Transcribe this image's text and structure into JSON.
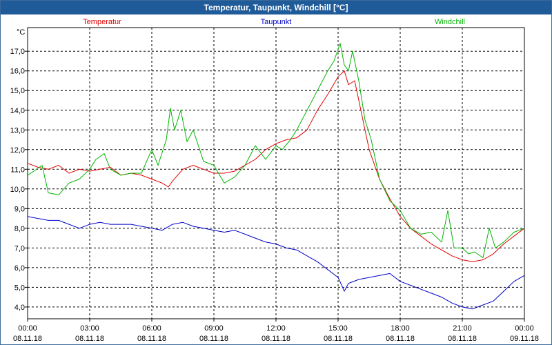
{
  "window": {
    "title": "Temperatur, Taupunkt, Windchill [°C]"
  },
  "colors": {
    "titlebar": "#1f5a99",
    "temperatur": "#e00000",
    "taupunkt": "#0000c8",
    "windchill": "#00b400"
  },
  "chart_data": {
    "type": "line",
    "title": "Temperatur, Taupunkt, Windchill [°C]",
    "ylabel": "°C",
    "ylim": [
      3.4,
      18.2
    ],
    "xlim": [
      0,
      24
    ],
    "yticks": [
      4,
      5,
      6,
      7,
      8,
      9,
      10,
      11,
      12,
      13,
      14,
      15,
      16,
      17
    ],
    "ytick_labels": [
      "4,0",
      "5,0",
      "6,0",
      "7,0",
      "8,0",
      "9,0",
      "10,0",
      "11,0",
      "12,0",
      "13,0",
      "14,0",
      "15,0",
      "16,0",
      "17,0"
    ],
    "xticks": [
      0,
      3,
      6,
      9,
      12,
      15,
      18,
      21,
      24
    ],
    "xtick_time": [
      "00:00",
      "03:00",
      "06:00",
      "09:00",
      "12:00",
      "15:00",
      "18:00",
      "21:00",
      "00:00"
    ],
    "xtick_date": [
      "08.11.18",
      "08.11.18",
      "08.11.18",
      "08.11.18",
      "08.11.18",
      "08.11.18",
      "08.11.18",
      "08.11.18",
      "09.11.18"
    ],
    "series": [
      {
        "name": "Temperatur",
        "color": "#e00000",
        "x": [
          0,
          0.5,
          1,
          1.5,
          2,
          2.5,
          3,
          3.5,
          4,
          4.5,
          5,
          5.5,
          6,
          6.5,
          6.8,
          7,
          7.5,
          8,
          8.5,
          9,
          9.5,
          10,
          10.5,
          11,
          11.5,
          12,
          12.5,
          13,
          13.5,
          14,
          14.5,
          15,
          15.3,
          15.5,
          15.8,
          16,
          16.5,
          17,
          17.5,
          18,
          18.5,
          19,
          19.5,
          20,
          20.5,
          21,
          21.5,
          22,
          22.5,
          23,
          23.5,
          24
        ],
        "y": [
          11.3,
          11.1,
          11.0,
          11.2,
          10.8,
          11.0,
          10.9,
          11.0,
          11.1,
          10.7,
          10.8,
          10.7,
          10.5,
          10.3,
          10.1,
          10.4,
          11.0,
          11.2,
          11.0,
          10.8,
          10.8,
          10.9,
          11.2,
          11.5,
          12.0,
          12.3,
          12.5,
          12.6,
          13.0,
          14.0,
          14.8,
          15.7,
          16.0,
          15.3,
          15.5,
          14.5,
          12.0,
          10.5,
          9.5,
          8.6,
          8.0,
          7.6,
          7.2,
          6.9,
          6.6,
          6.4,
          6.3,
          6.4,
          6.7,
          7.2,
          7.6,
          8.0
        ]
      },
      {
        "name": "Taupunkt",
        "color": "#0000c8",
        "x": [
          0,
          0.5,
          1,
          1.5,
          2,
          2.5,
          3,
          3.5,
          4,
          4.5,
          5,
          5.5,
          6,
          6.5,
          7,
          7.5,
          8,
          8.5,
          9,
          9.5,
          10,
          10.5,
          11,
          11.5,
          12,
          12.5,
          13,
          13.5,
          14,
          14.5,
          15,
          15.3,
          15.5,
          16,
          16.5,
          17,
          17.5,
          18,
          18.5,
          19,
          19.5,
          20,
          20.5,
          21,
          21.5,
          22,
          22.5,
          23,
          23.5,
          24
        ],
        "y": [
          8.6,
          8.5,
          8.4,
          8.4,
          8.2,
          8.0,
          8.2,
          8.3,
          8.2,
          8.2,
          8.2,
          8.1,
          8.0,
          7.9,
          8.2,
          8.3,
          8.1,
          8.0,
          7.9,
          7.8,
          7.9,
          7.7,
          7.5,
          7.3,
          7.2,
          7.0,
          6.9,
          6.6,
          6.3,
          5.9,
          5.5,
          4.8,
          5.2,
          5.4,
          5.5,
          5.6,
          5.7,
          5.3,
          5.1,
          4.9,
          4.7,
          4.5,
          4.2,
          4.0,
          3.9,
          4.1,
          4.3,
          4.8,
          5.3,
          5.6
        ]
      },
      {
        "name": "Windchill",
        "color": "#00b400",
        "x": [
          0,
          0.3,
          0.7,
          1,
          1.5,
          2,
          2.5,
          3,
          3.3,
          3.7,
          4,
          4.5,
          5,
          5.5,
          6,
          6.3,
          6.7,
          6.9,
          7.1,
          7.4,
          7.7,
          8,
          8.5,
          9,
          9.5,
          10,
          10.5,
          11,
          11.5,
          12,
          12.3,
          12.7,
          13,
          13.5,
          14,
          14.5,
          14.8,
          15.1,
          15.3,
          15.5,
          15.7,
          16,
          16.3,
          16.6,
          17,
          17.5,
          18,
          18.5,
          19,
          19.5,
          20,
          20.3,
          20.6,
          21,
          21.3,
          21.6,
          22,
          22.3,
          22.6,
          23,
          23.5,
          24
        ],
        "y": [
          10.7,
          10.9,
          11.2,
          9.8,
          9.7,
          10.3,
          10.5,
          11.0,
          11.5,
          11.8,
          11.0,
          10.7,
          10.8,
          10.8,
          12.0,
          11.2,
          12.5,
          14.1,
          13.0,
          14.0,
          12.4,
          13.0,
          11.4,
          11.2,
          10.3,
          10.6,
          11.2,
          12.2,
          11.5,
          12.2,
          12.0,
          12.5,
          13.0,
          14.0,
          15.0,
          16.0,
          16.5,
          17.4,
          16.3,
          16.0,
          17.0,
          15.5,
          13.5,
          12.5,
          10.5,
          9.4,
          8.9,
          8.0,
          7.7,
          7.8,
          7.3,
          8.9,
          7.0,
          7.0,
          6.7,
          6.8,
          6.5,
          8.0,
          7.0,
          7.3,
          7.8,
          8.0
        ]
      }
    ],
    "legend": [
      "Temperatur",
      "Taupunkt",
      "Windchill"
    ],
    "legend_position": "top"
  }
}
